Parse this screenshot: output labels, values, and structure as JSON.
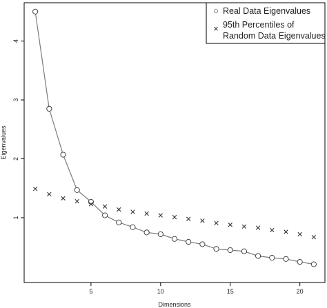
{
  "chart_data": {
    "type": "scatter",
    "title": "",
    "xlabel": "Dimensions",
    "ylabel": "Eigenvalues",
    "xlim": [
      0.2,
      21.8
    ],
    "ylim": [
      -0.1,
      4.65
    ],
    "xticks": [
      5,
      10,
      15,
      20
    ],
    "yticks": [
      1,
      2,
      3,
      4
    ],
    "grid": false,
    "legend_position": "top-right",
    "series": [
      {
        "name": "Real Data Eigenvalues",
        "style": "line-open-circle",
        "x": [
          1,
          2,
          3,
          4,
          5,
          6,
          7,
          8,
          9,
          10,
          11,
          12,
          13,
          14,
          15,
          16,
          17,
          18,
          19,
          20,
          21
        ],
        "y": [
          4.5,
          2.85,
          2.07,
          1.47,
          1.27,
          1.04,
          0.92,
          0.84,
          0.75,
          0.72,
          0.64,
          0.59,
          0.55,
          0.47,
          0.45,
          0.43,
          0.35,
          0.32,
          0.3,
          0.25,
          0.21
        ]
      },
      {
        "name": "95th Percentiles of Random Data Eigenvalues",
        "style": "cross",
        "x": [
          1,
          2,
          3,
          4,
          5,
          6,
          7,
          8,
          9,
          10,
          11,
          12,
          13,
          14,
          15,
          16,
          17,
          18,
          19,
          20,
          21
        ],
        "y": [
          1.49,
          1.4,
          1.33,
          1.28,
          1.23,
          1.19,
          1.14,
          1.1,
          1.07,
          1.04,
          1.01,
          0.98,
          0.95,
          0.91,
          0.88,
          0.85,
          0.83,
          0.79,
          0.76,
          0.72,
          0.67
        ]
      }
    ]
  },
  "legend": {
    "real_label": "Real Data Eigenvalues",
    "random_label_line1": "95th Percentiles of",
    "random_label_line2": "Random Data Eigenvalues",
    "real_symbol": "○",
    "random_symbol": "×"
  },
  "colors": {
    "line": "#7a7a7a",
    "marker": "#333333",
    "axis": "#000000"
  }
}
